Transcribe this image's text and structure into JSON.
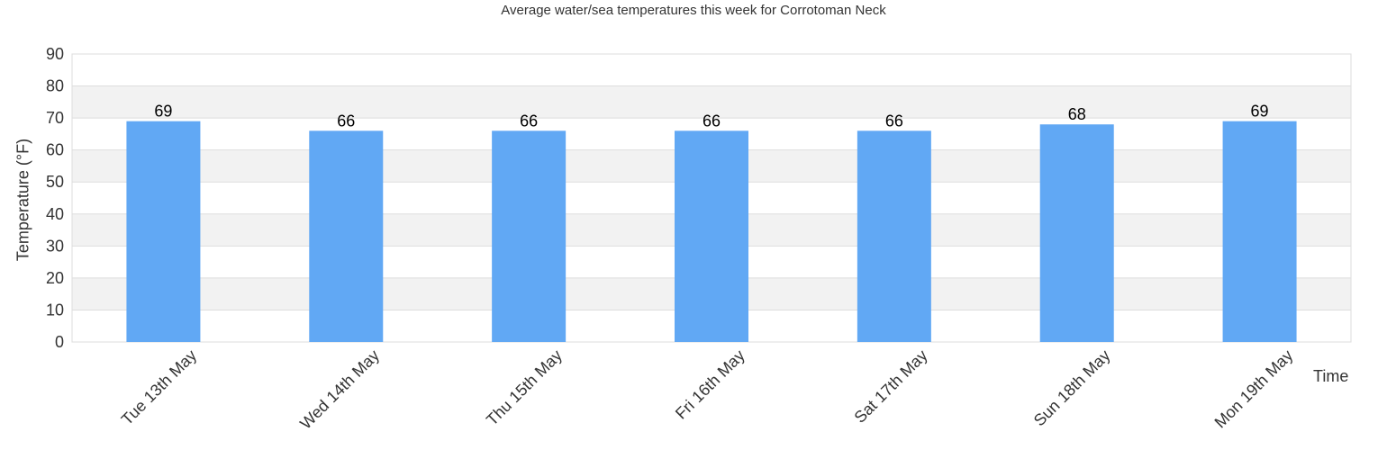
{
  "chart_data": {
    "type": "bar",
    "title": "Average water/sea temperatures this week for Corrotoman Neck",
    "xlabel": "Time",
    "ylabel": "Temperature (°F)",
    "categories": [
      "Tue 13th May",
      "Wed 14th May",
      "Thu 15th May",
      "Fri 16th May",
      "Sat 17th May",
      "Sun 18th May",
      "Mon 19th May"
    ],
    "values": [
      69,
      66,
      66,
      66,
      66,
      68,
      69
    ],
    "ylim": [
      0,
      90
    ],
    "yticks": [
      0,
      10,
      20,
      30,
      40,
      50,
      60,
      70,
      80,
      90
    ],
    "grid": true,
    "bar_color": "#61a8f4",
    "band_color": "#f2f2f2",
    "grid_color": "#dddddd"
  }
}
